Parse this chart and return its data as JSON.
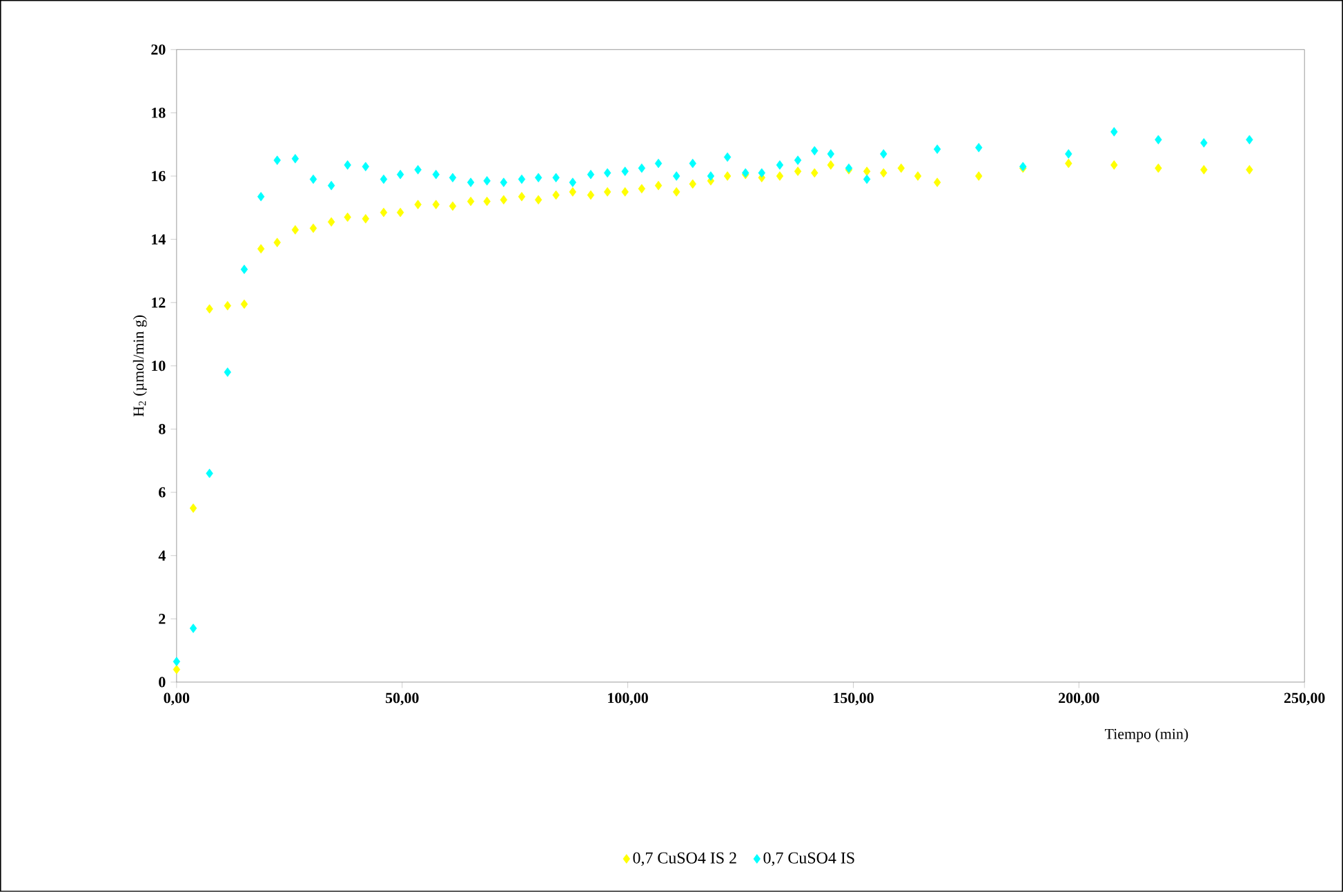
{
  "chart_data": {
    "type": "scatter",
    "xlabel": "Tiempo (min)",
    "ylabel": "H$_{2}$ (µmol/min g)",
    "xlim": [
      0,
      250
    ],
    "ylim": [
      0,
      20
    ],
    "xticks": [
      {
        "value": 0,
        "label": "0,00"
      },
      {
        "value": 50,
        "label": "50,00"
      },
      {
        "value": 100,
        "label": "100,00"
      },
      {
        "value": 150,
        "label": "150,00"
      },
      {
        "value": 200,
        "label": "200,00"
      },
      {
        "value": 250,
        "label": "250,00"
      }
    ],
    "yticks": [
      0,
      2,
      4,
      6,
      8,
      10,
      12,
      14,
      16,
      18,
      20
    ],
    "grid": false,
    "legend": "bottom",
    "marker": "diamond",
    "series": [
      {
        "name": "0,7 CuSO4 IS 2",
        "color": "#ffff00",
        "x": [
          0,
          3.7,
          7.3,
          11.3,
          15,
          18.7,
          22.3,
          26.3,
          30.3,
          34.3,
          37.9,
          41.9,
          45.9,
          49.6,
          53.5,
          57.5,
          61.2,
          65.2,
          68.8,
          72.5,
          76.5,
          80.2,
          84.1,
          87.8,
          91.8,
          95.5,
          99.4,
          103.1,
          106.8,
          110.8,
          114.4,
          118.4,
          122.1,
          126.1,
          129.7,
          133.7,
          137.7,
          141.4,
          145,
          149,
          153,
          156.7,
          160.6,
          164.3,
          168.6,
          177.8,
          187.6,
          197.7,
          207.8,
          217.6,
          227.7,
          237.8
        ],
        "values": [
          0.4,
          5.5,
          11.8,
          11.9,
          11.95,
          13.7,
          13.9,
          14.3,
          14.35,
          14.55,
          14.7,
          14.65,
          14.85,
          14.85,
          15.1,
          15.1,
          15.05,
          15.2,
          15.2,
          15.25,
          15.35,
          15.25,
          15.4,
          15.5,
          15.4,
          15.5,
          15.5,
          15.6,
          15.7,
          15.5,
          15.75,
          15.85,
          16.0,
          16.05,
          15.95,
          16.0,
          16.15,
          16.1,
          16.35,
          16.2,
          16.15,
          16.1,
          16.25,
          16.0,
          15.8,
          16.0,
          16.25,
          16.4,
          16.35,
          16.25,
          16.2,
          16.2
        ]
      },
      {
        "name": "0,7 CuSO4 IS",
        "color": "#00ffff",
        "x": [
          0,
          3.7,
          7.3,
          11.3,
          15,
          18.7,
          22.3,
          26.3,
          30.3,
          34.3,
          37.9,
          41.9,
          45.9,
          49.6,
          53.5,
          57.5,
          61.2,
          65.2,
          68.8,
          72.5,
          76.5,
          80.2,
          84.1,
          87.8,
          91.8,
          95.5,
          99.4,
          103.1,
          106.8,
          110.8,
          114.4,
          118.4,
          122.1,
          126.1,
          129.7,
          133.7,
          137.7,
          141.4,
          145,
          149,
          153,
          156.7,
          168.6,
          177.8,
          187.6,
          197.7,
          207.8,
          217.6,
          227.7,
          237.8
        ],
        "values": [
          0.65,
          1.7,
          6.6,
          9.8,
          13.05,
          15.35,
          16.5,
          16.55,
          15.9,
          15.7,
          16.35,
          16.3,
          15.9,
          16.05,
          16.2,
          16.05,
          15.95,
          15.8,
          15.85,
          15.8,
          15.9,
          15.95,
          15.95,
          15.8,
          16.05,
          16.1,
          16.15,
          16.25,
          16.4,
          16.0,
          16.4,
          16.0,
          16.6,
          16.1,
          16.1,
          16.35,
          16.5,
          16.8,
          16.7,
          16.25,
          15.9,
          16.7,
          16.85,
          16.9,
          16.3,
          16.7,
          17.4,
          17.15,
          17.05,
          17.15
        ]
      }
    ]
  }
}
